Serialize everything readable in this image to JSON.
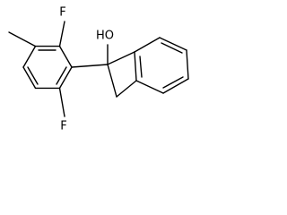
{
  "labels": {
    "fluorine_top": "F",
    "fluorine_bottom": "F",
    "hydroxyl": "HO"
  }
}
